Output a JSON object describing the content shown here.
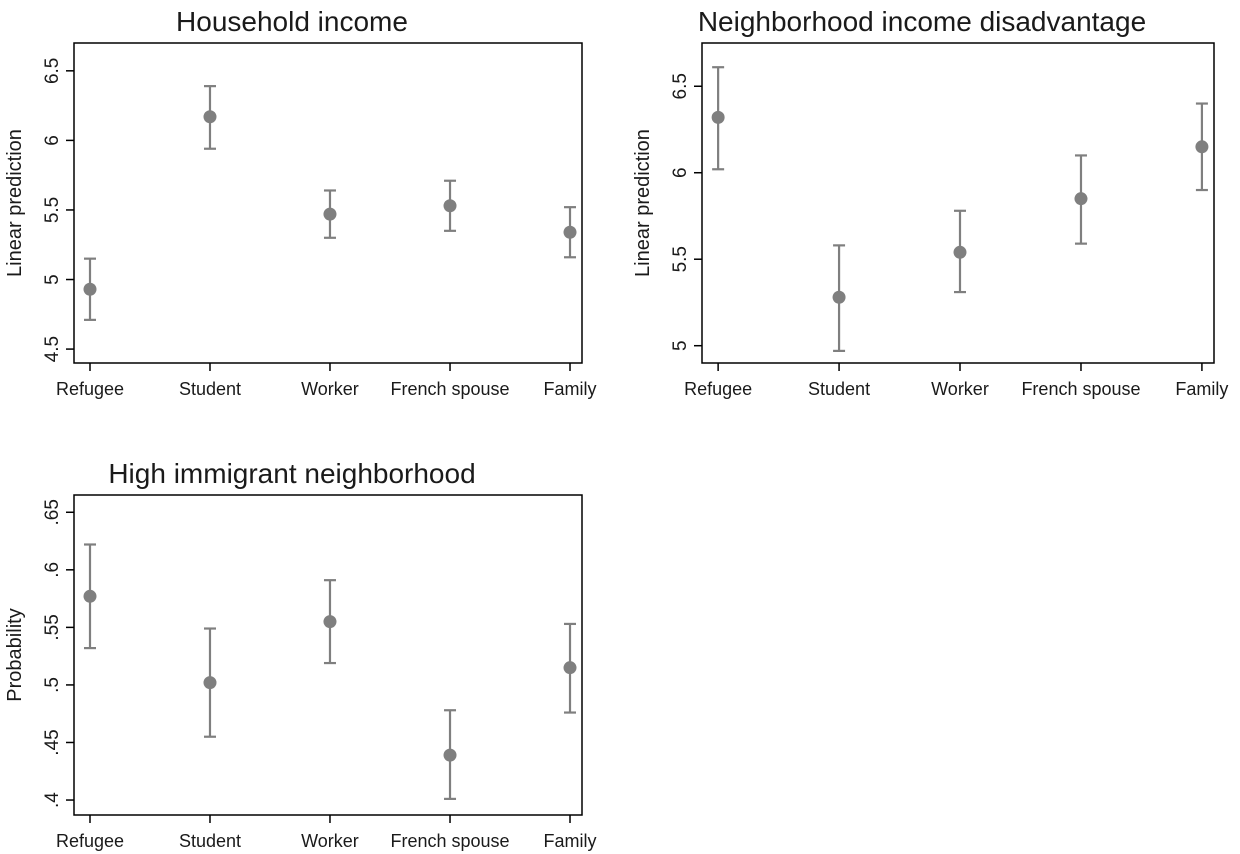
{
  "chart_data": [
    {
      "type": "scatter",
      "title": "Household income",
      "ylabel": "Linear prediction",
      "xlabel": "",
      "categories": [
        "Refugee",
        "Student",
        "Worker",
        "French spouse",
        "Family"
      ],
      "yticks": [
        "4.5",
        "5",
        "5.5",
        "6",
        "6.5"
      ],
      "ytick_values": [
        4.5,
        5,
        5.5,
        6,
        6.5
      ],
      "ylim": [
        4.4,
        6.7
      ],
      "estimates": [
        4.93,
        6.17,
        5.47,
        5.53,
        5.34
      ],
      "ci_low": [
        4.71,
        5.94,
        5.3,
        5.35,
        5.16
      ],
      "ci_high": [
        5.15,
        6.39,
        5.64,
        5.71,
        5.52
      ],
      "grid": false,
      "marker_color": "#7f7f7f"
    },
    {
      "type": "scatter",
      "title": "Neighborhood income disadvantage",
      "ylabel": "Linear prediction",
      "xlabel": "",
      "categories": [
        "Refugee",
        "Student",
        "Worker",
        "French spouse",
        "Family"
      ],
      "yticks": [
        "5",
        "5.5",
        "6",
        "6.5"
      ],
      "ytick_values": [
        5,
        5.5,
        6,
        6.5
      ],
      "ylim": [
        4.9,
        6.75
      ],
      "estimates": [
        6.32,
        5.28,
        5.54,
        5.85,
        6.15
      ],
      "ci_low": [
        6.02,
        4.97,
        5.31,
        5.59,
        5.9
      ],
      "ci_high": [
        6.61,
        5.58,
        5.78,
        6.1,
        6.4
      ],
      "grid": false,
      "marker_color": "#7f7f7f"
    },
    {
      "type": "scatter",
      "title": "High immigrant neighborhood",
      "ylabel": "Probability",
      "xlabel": "",
      "categories": [
        "Refugee",
        "Student",
        "Worker",
        "French spouse",
        "Family"
      ],
      "yticks": [
        ".4",
        ".45",
        ".5",
        ".55",
        ".6",
        ".65"
      ],
      "ytick_values": [
        0.4,
        0.45,
        0.5,
        0.55,
        0.6,
        0.65
      ],
      "ylim": [
        0.387,
        0.665
      ],
      "estimates": [
        0.577,
        0.502,
        0.555,
        0.439,
        0.515
      ],
      "ci_low": [
        0.532,
        0.455,
        0.519,
        0.401,
        0.476
      ],
      "ci_high": [
        0.622,
        0.549,
        0.591,
        0.478,
        0.553
      ],
      "grid": false,
      "marker_color": "#7f7f7f"
    }
  ]
}
